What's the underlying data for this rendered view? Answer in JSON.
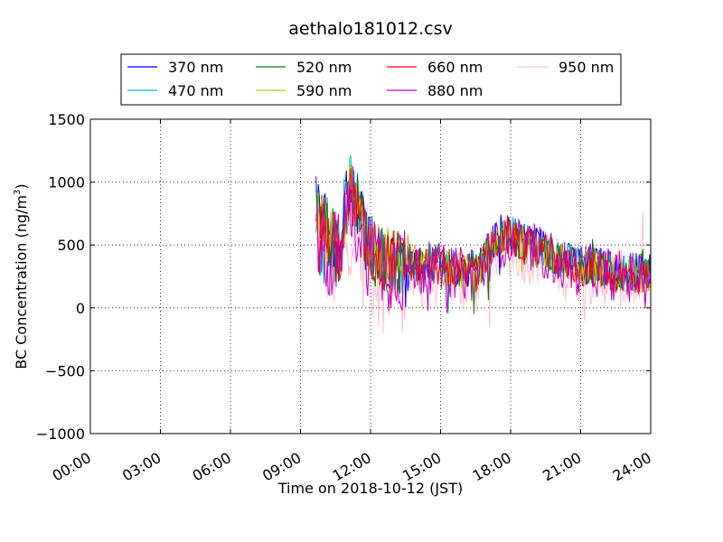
{
  "chart_data": {
    "type": "line",
    "title": "aethalo181012.csv",
    "xlabel": "Time on 2018-10-12 (JST)",
    "ylabel": "BC Concentration (ng/m",
    "ylabel_superscript": "3",
    "ylabel_suffix": ")",
    "xlim": [
      "00:00",
      "24:00"
    ],
    "ylim": [
      -1000,
      1500
    ],
    "x_ticks": [
      "00:00",
      "03:00",
      "06:00",
      "09:00",
      "12:00",
      "15:00",
      "18:00",
      "21:00",
      "24:00"
    ],
    "y_ticks": [
      -1000,
      -500,
      0,
      500,
      1000,
      1500
    ],
    "y_tick_labels": [
      "−1000",
      "−500",
      "0",
      "500",
      "1000",
      "1500"
    ],
    "grid": true,
    "legend_position": "top",
    "x_range_with_data": [
      "09:40",
      "24:00"
    ],
    "series": [
      {
        "name": "370 nm",
        "color": "#0000ff",
        "level": [
          800,
          650,
          500,
          1050,
          700,
          450,
          420,
          400,
          380,
          360,
          380,
          350,
          330,
          320,
          300,
          480,
          600,
          600,
          540,
          520,
          480,
          400,
          370,
          350,
          350,
          330,
          300,
          280,
          300,
          300
        ]
      },
      {
        "name": "470 nm",
        "color": "#00bfbf",
        "level": [
          780,
          620,
          480,
          1000,
          680,
          440,
          410,
          390,
          370,
          350,
          370,
          340,
          320,
          310,
          290,
          470,
          580,
          580,
          520,
          500,
          460,
          390,
          360,
          340,
          340,
          320,
          290,
          270,
          290,
          290
        ]
      },
      {
        "name": "520 nm",
        "color": "#008000",
        "level": [
          760,
          600,
          460,
          980,
          660,
          430,
          400,
          380,
          360,
          340,
          360,
          330,
          310,
          300,
          280,
          460,
          570,
          570,
          510,
          490,
          450,
          380,
          350,
          330,
          330,
          310,
          280,
          260,
          280,
          280
        ]
      },
      {
        "name": "590 nm",
        "color": "#bfbf00",
        "level": [
          740,
          580,
          440,
          950,
          640,
          420,
          390,
          370,
          350,
          330,
          350,
          320,
          300,
          290,
          270,
          450,
          560,
          560,
          500,
          480,
          440,
          370,
          340,
          320,
          320,
          300,
          270,
          250,
          270,
          270
        ]
      },
      {
        "name": "660 nm",
        "color": "#ff0000",
        "level": [
          720,
          560,
          420,
          920,
          620,
          410,
          380,
          360,
          340,
          320,
          340,
          310,
          290,
          280,
          260,
          440,
          550,
          550,
          490,
          470,
          430,
          360,
          330,
          310,
          310,
          290,
          260,
          240,
          260,
          260
        ]
      },
      {
        "name": "880 nm",
        "color": "#bf00bf",
        "level": [
          650,
          500,
          380,
          850,
          560,
          380,
          350,
          330,
          310,
          300,
          320,
          300,
          280,
          270,
          250,
          420,
          530,
          540,
          480,
          460,
          430,
          350,
          320,
          300,
          300,
          290,
          260,
          240,
          260,
          260
        ]
      },
      {
        "name": "950 nm",
        "color": "#ffc0cb",
        "level": [
          600,
          420,
          300,
          700,
          450,
          300,
          280,
          250,
          230,
          220,
          240,
          220,
          200,
          200,
          190,
          380,
          480,
          490,
          430,
          420,
          390,
          320,
          290,
          270,
          270,
          250,
          230,
          210,
          230,
          230
        ]
      }
    ]
  }
}
